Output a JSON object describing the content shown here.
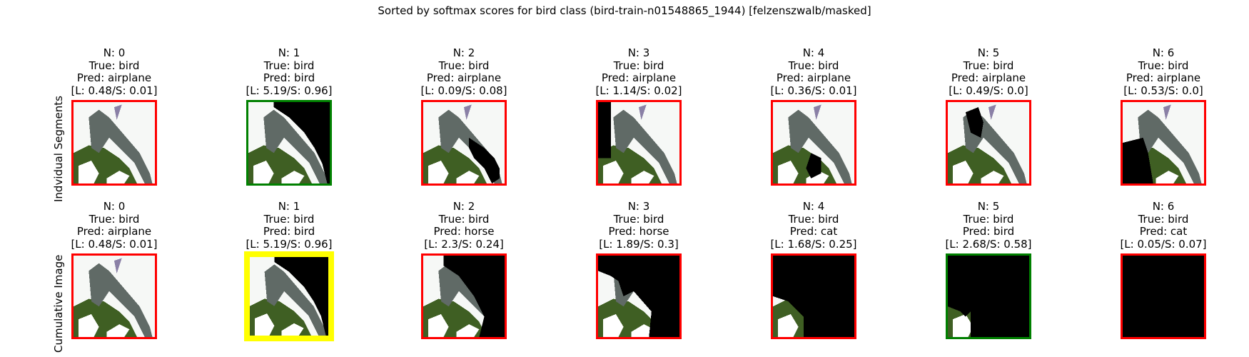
{
  "suptitle": "Sorted by softmax scores for bird class (bird-train-n01548865_1944) [felzenszwalb/masked]",
  "row_labels": [
    "Indvidual Segments",
    "Cumulative Image"
  ],
  "colors": {
    "correct": "#008000",
    "incorrect": "#ff0000",
    "highlight": "#ffff00",
    "sky": "#f6f8f6",
    "plane": "#606a66",
    "grass": "#3f5f23",
    "white": "#ffffff",
    "black": "#000000"
  },
  "chart_data": [
    {
      "type": "image-grid",
      "row": "Indvidual Segments",
      "panels": [
        {
          "n": "N: 0",
          "true": "True: bird",
          "pred": "Pred: airplane",
          "score": "[L: 0.48/S: 0.01]",
          "logit": 0.48,
          "softmax": 0.01,
          "status": "incorrect",
          "mask": "none"
        },
        {
          "n": "N: 1",
          "true": "True: bird",
          "pred": "Pred: bird",
          "score": "[L: 5.19/S: 0.96]",
          "logit": 5.19,
          "softmax": 0.96,
          "status": "correct",
          "mask": "seg1"
        },
        {
          "n": "N: 2",
          "true": "True: bird",
          "pred": "Pred: airplane",
          "score": "[L: 0.09/S: 0.08]",
          "logit": 0.09,
          "softmax": 0.08,
          "status": "incorrect",
          "mask": "seg2"
        },
        {
          "n": "N: 3",
          "true": "True: bird",
          "pred": "Pred: airplane",
          "score": "[L: 1.14/S: 0.02]",
          "logit": 1.14,
          "softmax": 0.02,
          "status": "incorrect",
          "mask": "seg3"
        },
        {
          "n": "N: 4",
          "true": "True: bird",
          "pred": "Pred: airplane",
          "score": "[L: 0.36/S: 0.01]",
          "logit": 0.36,
          "softmax": 0.01,
          "status": "incorrect",
          "mask": "seg4"
        },
        {
          "n": "N: 5",
          "true": "True: bird",
          "pred": "Pred: airplane",
          "score": "[L: 0.49/S: 0.0]",
          "logit": 0.49,
          "softmax": 0.0,
          "status": "incorrect",
          "mask": "seg5"
        },
        {
          "n": "N: 6",
          "true": "True: bird",
          "pred": "Pred: airplane",
          "score": "[L: 0.53/S: 0.0]",
          "logit": 0.53,
          "softmax": 0.0,
          "status": "incorrect",
          "mask": "seg6"
        }
      ]
    },
    {
      "type": "image-grid",
      "row": "Cumulative Image",
      "panels": [
        {
          "n": "N: 0",
          "true": "True: bird",
          "pred": "Pred: airplane",
          "score": "[L: 0.48/S: 0.01]",
          "logit": 0.48,
          "softmax": 0.01,
          "status": "incorrect",
          "mask": "none"
        },
        {
          "n": "N: 1",
          "true": "True: bird",
          "pred": "Pred: bird",
          "score": "[L: 5.19/S: 0.96]",
          "logit": 5.19,
          "softmax": 0.96,
          "status": "best",
          "mask": "cum1"
        },
        {
          "n": "N: 2",
          "true": "True: bird",
          "pred": "Pred: horse",
          "score": "[L: 2.3/S: 0.24]",
          "logit": 2.3,
          "softmax": 0.24,
          "status": "incorrect",
          "mask": "cum2"
        },
        {
          "n": "N: 3",
          "true": "True: bird",
          "pred": "Pred: horse",
          "score": "[L: 1.89/S: 0.3]",
          "logit": 1.89,
          "softmax": 0.3,
          "status": "incorrect",
          "mask": "cum3"
        },
        {
          "n": "N: 4",
          "true": "True: bird",
          "pred": "Pred: cat",
          "score": "[L: 1.68/S: 0.25]",
          "logit": 1.68,
          "softmax": 0.25,
          "status": "incorrect",
          "mask": "cum4"
        },
        {
          "n": "N: 5",
          "true": "True: bird",
          "pred": "Pred: bird",
          "score": "[L: 2.68/S: 0.58]",
          "logit": 2.68,
          "softmax": 0.58,
          "status": "correct",
          "mask": "cum5"
        },
        {
          "n": "N: 6",
          "true": "True: bird",
          "pred": "Pred: cat",
          "score": "[L: 0.05/S: 0.07]",
          "logit": 0.05,
          "softmax": 0.07,
          "status": "incorrect",
          "mask": "cum6"
        }
      ]
    }
  ]
}
